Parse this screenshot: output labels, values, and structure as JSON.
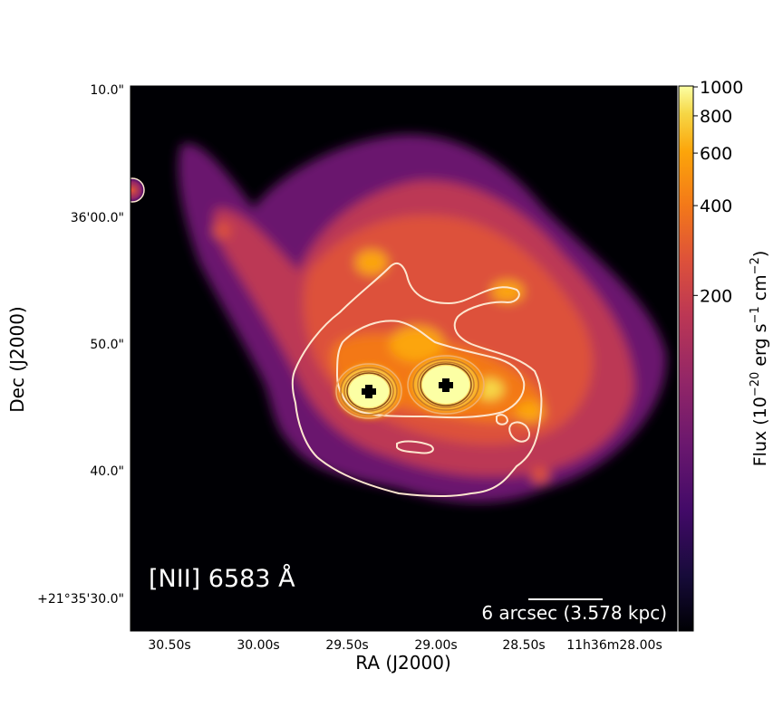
{
  "chart_data": {
    "type": "heatmap",
    "panel_label": "[NII] 6583 Å",
    "xlabel": "RA (J2000)",
    "ylabel": "Dec (J2000)",
    "x_ticks": [
      "30.50s",
      "30.00s",
      "29.50s",
      "29.00s",
      "28.50s",
      "11h36m28.00s"
    ],
    "y_ticks": [
      "10.0\"",
      "36'00.0\"",
      "50.0\"",
      "40.0\"",
      "+21°35'30.0\""
    ],
    "colorbar": {
      "label": "Flux (10^-20 erg s^-1 cm^-2)",
      "label_parts": {
        "prefix": "Flux (10",
        "exp1": "−20",
        "mid1": " erg s",
        "exp2": "−1",
        "mid2": " cm",
        "exp3": "−2",
        "suffix": ")"
      },
      "scale": "log",
      "colormap": "inferno",
      "ticks": [
        1000,
        800,
        600,
        400,
        200
      ],
      "tick_labels": [
        "1000",
        "800",
        "600",
        "400",
        "200"
      ]
    },
    "scale_bar": {
      "label": "6 arcsec (3.578 kpc)",
      "arcsec": 6,
      "kpc": 3.578
    },
    "grid": false,
    "nuclei_markers": 2,
    "contours": true
  },
  "colors": {
    "background": "#000004",
    "contour_outer": "#fde6cf",
    "contour_inner": "#c77a2a",
    "marker": "#000000",
    "text_on_image": "#ffffff"
  }
}
